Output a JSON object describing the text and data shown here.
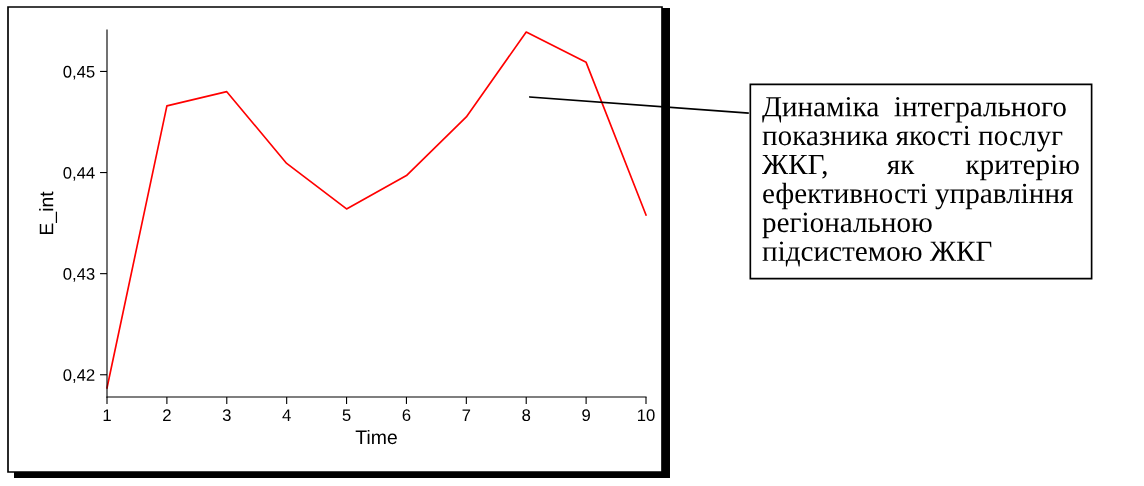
{
  "chart_data": {
    "type": "line",
    "xlabel": "Time",
    "ylabel": "E_int",
    "x": [
      1,
      2,
      3,
      4,
      5,
      6,
      7,
      8,
      9,
      10
    ],
    "series": [
      {
        "color": "#ff0000",
        "values": [
          0.4187,
          0.4466,
          0.448,
          0.4409,
          0.4364,
          0.4397,
          0.4455,
          0.4539,
          0.4509,
          0.4358
        ]
      }
    ],
    "xlim": [
      1,
      10
    ],
    "xticks": [
      1,
      2,
      3,
      4,
      5,
      6,
      7,
      8,
      9,
      10
    ],
    "ylim": [
      0.4178,
      0.4541
    ],
    "yticks": [
      {
        "value": 0.42,
        "label": "0,42"
      },
      {
        "value": 0.43,
        "label": "0,43"
      },
      {
        "value": 0.44,
        "label": "0,44"
      },
      {
        "value": 0.45,
        "label": "0,45"
      }
    ],
    "grid": false,
    "marker": "none",
    "line_style": "solid",
    "annotations": [
      "Динаміка  інтегрального\nпоказника якості послуг\nЖКГ,        як       критерію\nефективності управління\nрегіональною\nпідсистемою ЖКГ"
    ]
  }
}
